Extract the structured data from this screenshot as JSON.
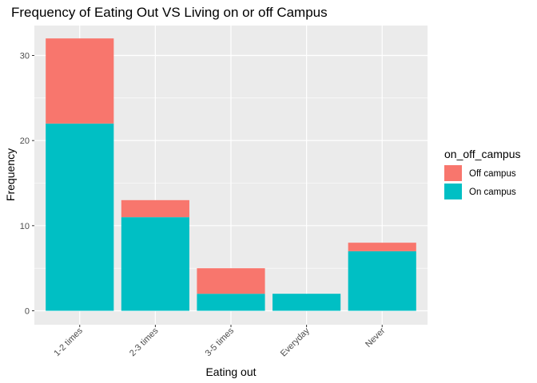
{
  "chart_data": {
    "type": "bar",
    "stacked": true,
    "title": "Frequency of Eating Out VS Living on or off Campus",
    "xlabel": "Eating out",
    "ylabel": "Frequency",
    "categories": [
      "1-2 times",
      "2-3 times",
      "3-5 times",
      "Everyday",
      "Never"
    ],
    "series": [
      {
        "name": "Off campus",
        "values": [
          10,
          2,
          3,
          0,
          1
        ],
        "color": "#F8766D"
      },
      {
        "name": "On campus",
        "values": [
          22,
          11,
          2,
          2,
          7
        ],
        "color": "#00BFC4"
      }
    ],
    "ylim": [
      0,
      33.6
    ],
    "yticks": [
      0,
      10,
      20,
      30
    ],
    "grid": true,
    "legend": {
      "title": "on_off_campus",
      "position": "right"
    },
    "panel_color": "#EBEBEB"
  }
}
